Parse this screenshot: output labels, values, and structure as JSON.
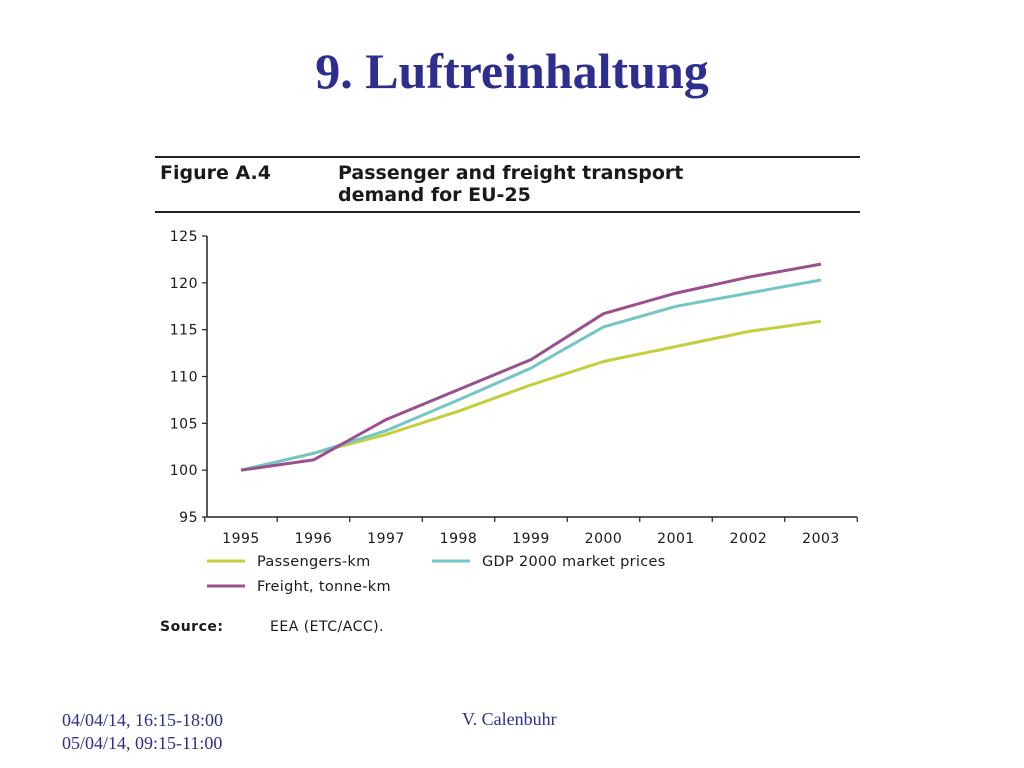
{
  "slide": {
    "title": "9. Luftreinhaltung",
    "footer_dates": [
      "04/04/14, 16:15-18:00",
      "05/04/14, 09:15-11:00"
    ],
    "footer_author": "V. Calenbuhr"
  },
  "chart_data": {
    "type": "line",
    "figure_label": "Figure A.4",
    "title_lines": [
      "Passenger and freight transport",
      "demand for EU-25"
    ],
    "categories": [
      "1995",
      "1996",
      "1997",
      "1998",
      "1999",
      "2000",
      "2001",
      "2002",
      "2003"
    ],
    "ylim": [
      95,
      125
    ],
    "yticks": [
      95,
      100,
      105,
      110,
      115,
      120,
      125
    ],
    "grid": false,
    "legend_position": "bottom",
    "series": [
      {
        "name": "Passengers-km",
        "color": "#c3cf3d",
        "values": [
          100.0,
          101.8,
          103.8,
          106.3,
          109.1,
          111.6,
          113.2,
          114.8,
          115.9
        ]
      },
      {
        "name": "GDP 2000 market prices",
        "color": "#74c6c6",
        "values": [
          100.0,
          101.8,
          104.2,
          107.5,
          110.9,
          115.3,
          117.5,
          118.9,
          120.3
        ]
      },
      {
        "name": "Freight, tonne-km",
        "color": "#9a4f8e",
        "values": [
          100.0,
          101.1,
          105.4,
          108.6,
          111.8,
          116.7,
          118.9,
          120.6,
          122.0
        ]
      }
    ],
    "source_label": "Source:",
    "source_text": "EEA (ETC/ACC)."
  }
}
